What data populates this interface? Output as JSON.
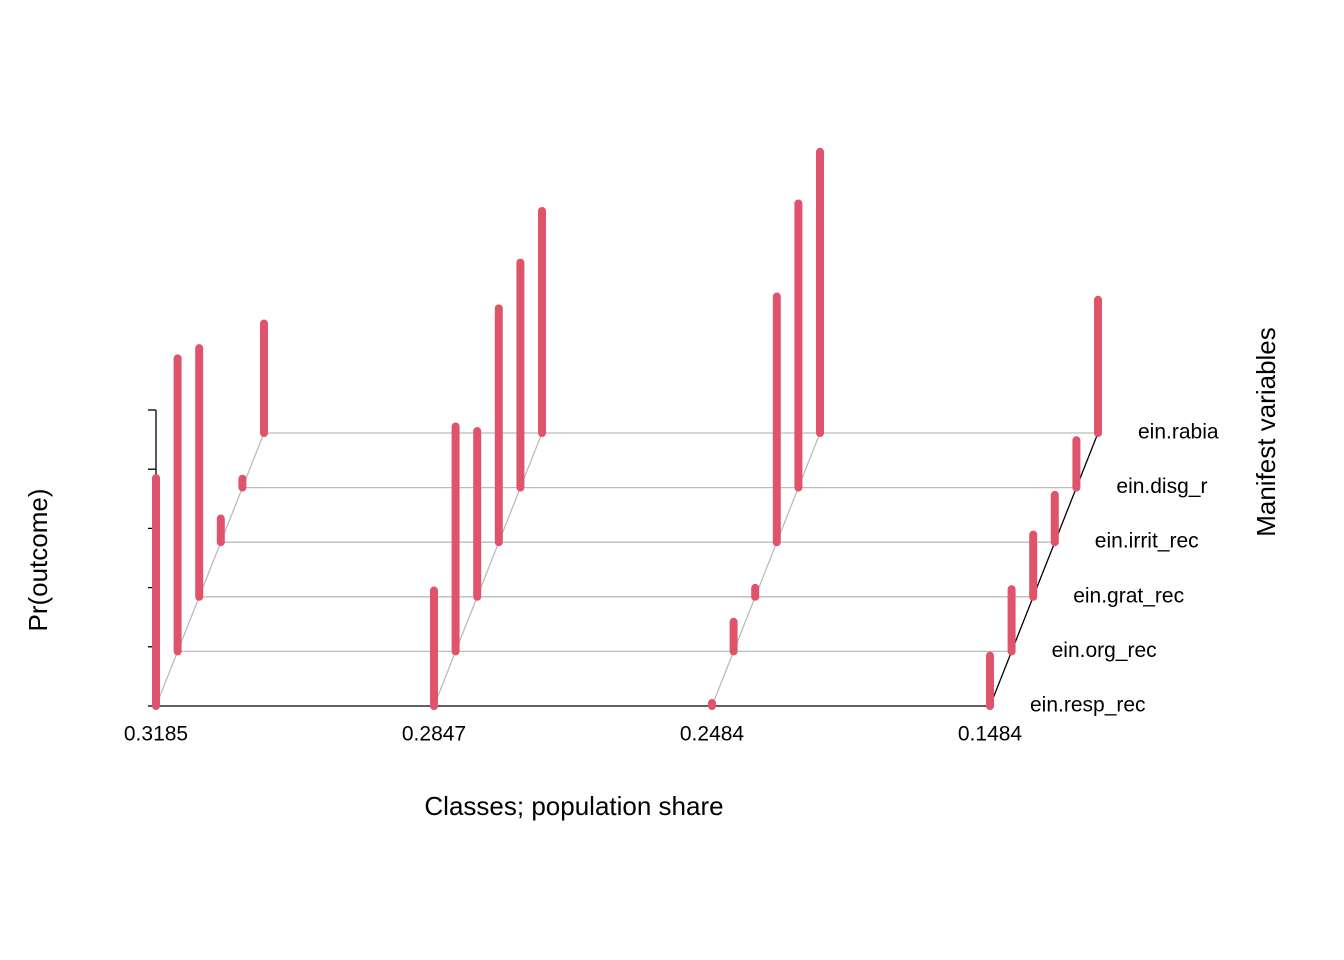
{
  "chart_data": {
    "type": "bar3d",
    "xlabel": "Classes; population share",
    "ylabel": "Manifest variables",
    "zlabel": "Pr(outcome)",
    "categories": [
      "0.3185",
      "0.2847",
      "0.2484",
      "0.1484"
    ],
    "variables": [
      "ein.resp_rec",
      "ein.org_rec",
      "ein.grat_rec",
      "ein.irrit_rec",
      "ein.disg_r",
      "ein.rabia"
    ],
    "values": [
      [
        0.77,
        0.99,
        0.84,
        0.08,
        0.03,
        0.37
      ],
      [
        0.39,
        0.76,
        0.56,
        0.79,
        0.76,
        0.75
      ],
      [
        0.01,
        0.1,
        0.03,
        0.83,
        0.96,
        0.95
      ],
      [
        0.17,
        0.21,
        0.21,
        0.16,
        0.16,
        0.45
      ]
    ],
    "color": "#DF536B",
    "zlim": [
      0,
      1
    ],
    "zticks": [
      0,
      0.2,
      0.4,
      0.6,
      0.8,
      1
    ]
  }
}
